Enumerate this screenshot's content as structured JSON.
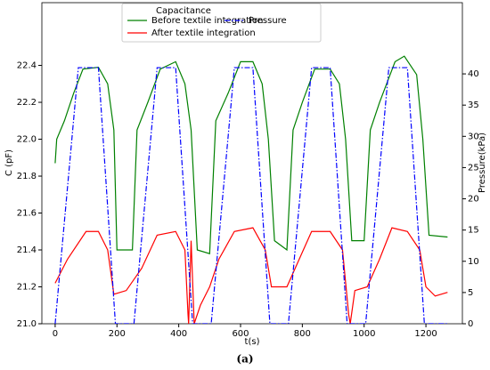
{
  "chart_data": {
    "type": "line",
    "legend_title": "Capacitance",
    "xlabel": "t(s)",
    "ylabel": "C (pF)",
    "y2label": "Pressure(kPa)",
    "caption": "(a)",
    "xlim": [
      -43,
      1318
    ],
    "xticks": [
      0,
      200,
      400,
      600,
      800,
      1000,
      1200
    ],
    "ylim": [
      21.0,
      22.74
    ],
    "yticks": [
      {
        "value": 21.0,
        "label": "21.0"
      },
      21.2,
      21.4,
      21.6,
      21.8,
      {
        "value": 22.0,
        "label": "22.0"
      },
      22.2,
      22.4
    ],
    "y2lim": [
      0,
      51.4
    ],
    "y2ticks": [
      0,
      5,
      10,
      15,
      20,
      25,
      30,
      35,
      40
    ],
    "y2color": "#0000ff",
    "series": [
      {
        "name": "Before textile integration",
        "color": "#008000",
        "style": "solid",
        "x": [
          0,
          5,
          30,
          60,
          90,
          140,
          170,
          190,
          200,
          250,
          265,
          300,
          340,
          390,
          420,
          440,
          460,
          500,
          520,
          560,
          600,
          640,
          670,
          690,
          710,
          750,
          770,
          800,
          840,
          890,
          920,
          940,
          960,
          1000,
          1020,
          1050,
          1100,
          1130,
          1170,
          1190,
          1210,
          1270
        ],
        "values": [
          21.87,
          22.0,
          22.1,
          22.25,
          22.38,
          22.39,
          22.3,
          22.05,
          21.4,
          21.4,
          22.05,
          22.2,
          22.38,
          22.42,
          22.3,
          22.05,
          21.4,
          21.38,
          22.1,
          22.25,
          22.42,
          22.42,
          22.3,
          22.0,
          21.45,
          21.4,
          22.05,
          22.2,
          22.38,
          22.38,
          22.3,
          22.0,
          21.45,
          21.45,
          22.05,
          22.2,
          22.42,
          22.45,
          22.35,
          22.0,
          21.48,
          21.47
        ]
      },
      {
        "name": "After textile integration",
        "color": "#ff0000",
        "style": "solid",
        "x": [
          0,
          40,
          100,
          140,
          170,
          190,
          230,
          280,
          330,
          390,
          420,
          430,
          432,
          440,
          450,
          470,
          500,
          530,
          580,
          640,
          680,
          700,
          750,
          790,
          830,
          890,
          930,
          950,
          955,
          970,
          1010,
          1050,
          1090,
          1140,
          1180,
          1200,
          1230,
          1270
        ],
        "values": [
          21.22,
          21.35,
          21.5,
          21.5,
          21.4,
          21.16,
          21.18,
          21.3,
          21.48,
          21.5,
          21.4,
          21.05,
          21.0,
          21.45,
          21.0,
          21.1,
          21.2,
          21.35,
          21.5,
          21.52,
          21.4,
          21.2,
          21.2,
          21.35,
          21.5,
          21.5,
          21.4,
          21.05,
          21.0,
          21.18,
          21.2,
          21.35,
          21.52,
          21.5,
          21.4,
          21.2,
          21.15,
          21.17
        ]
      },
      {
        "name": "Pressure",
        "color": "#0000ff",
        "style": "dashdot",
        "axis": "y2",
        "x": [
          0,
          75,
          140,
          195,
          255,
          330,
          390,
          445,
          505,
          580,
          640,
          695,
          755,
          830,
          890,
          945,
          1005,
          1080,
          1140,
          1195,
          1270
        ],
        "values": [
          0,
          41,
          41,
          0,
          0,
          41,
          41,
          0,
          0,
          41,
          41,
          0,
          0,
          41,
          41,
          0,
          0,
          41,
          41,
          0,
          0
        ]
      }
    ]
  }
}
